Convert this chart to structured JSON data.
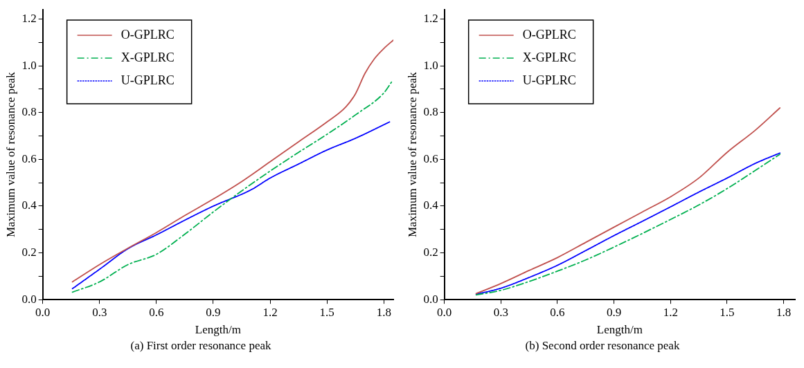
{
  "chart_data": [
    {
      "type": "line",
      "xlabel": "Length/m",
      "ylabel": "Maximum value of resonance peak",
      "annotations": [
        "(a) First order resonance peak"
      ],
      "legend": "top left",
      "grid": false,
      "marker": "none",
      "xlim": [
        0,
        1.85
      ],
      "xticks": [
        {
          "value": 0,
          "label": "0.0"
        },
        0.3,
        0.6,
        0.9,
        1.2,
        1.5,
        1.8
      ],
      "ylim": [
        0,
        1.24
      ],
      "yticks": [
        {
          "value": 0,
          "label": "0.0"
        },
        {
          "value": 0.1,
          "label": null
        },
        0.2,
        {
          "value": 0.3,
          "label": null
        },
        0.4,
        {
          "value": 0.5,
          "label": null
        },
        0.6,
        {
          "value": 0.7,
          "label": null
        },
        0.8,
        {
          "value": 0.9,
          "label": null
        },
        {
          "value": 1,
          "label": "1.0"
        },
        {
          "value": 1.1,
          "label": null
        },
        1.2
      ],
      "series": [
        {
          "name": "O-GPLRC",
          "color": "#c0504d",
          "line_style": "solid",
          "x": [
            0.157,
            0.3,
            0.45,
            0.6,
            0.75,
            0.9,
            1.05,
            1.2,
            1.35,
            1.5,
            1.6,
            1.65,
            1.7,
            1.75,
            1.8,
            1.85
          ],
          "values": [
            0.076,
            0.15,
            0.22,
            0.287,
            0.36,
            0.43,
            0.505,
            0.59,
            0.675,
            0.76,
            0.825,
            0.88,
            0.967,
            1.03,
            1.074,
            1.11
          ]
        },
        {
          "name": "X-GPLRC",
          "color": "#00b050",
          "line_style": "dashed",
          "x": [
            0.157,
            0.3,
            0.45,
            0.6,
            0.75,
            0.9,
            1.05,
            1.2,
            1.35,
            1.5,
            1.65,
            1.8,
            1.84
          ],
          "values": [
            0.032,
            0.076,
            0.15,
            0.194,
            0.28,
            0.375,
            0.465,
            0.55,
            0.63,
            0.707,
            0.79,
            0.884,
            0.93
          ]
        },
        {
          "name": "U-GPLRC",
          "color": "#0000ff",
          "line_style": "dotted",
          "x": [
            0.157,
            0.3,
            0.45,
            0.6,
            0.75,
            0.9,
            1.1,
            1.2,
            1.35,
            1.5,
            1.65,
            1.83
          ],
          "values": [
            0.047,
            0.13,
            0.218,
            0.277,
            0.34,
            0.4,
            0.47,
            0.52,
            0.58,
            0.64,
            0.69,
            0.76
          ]
        }
      ]
    },
    {
      "type": "line",
      "xlabel": "Length/m",
      "ylabel": "Maximum value of resonance peak",
      "annotations": [
        "(b) Second order resonance peak"
      ],
      "legend": "top left",
      "grid": false,
      "marker": "none",
      "xlim": [
        0,
        1.86
      ],
      "xticks": [
        {
          "value": 0,
          "label": "0.0"
        },
        0.3,
        0.6,
        0.9,
        1.2,
        1.5,
        1.8
      ],
      "ylim": [
        0,
        1.24
      ],
      "yticks": [
        {
          "value": 0,
          "label": "0.0"
        },
        {
          "value": 0.1,
          "label": null
        },
        0.2,
        {
          "value": 0.3,
          "label": null
        },
        0.4,
        {
          "value": 0.5,
          "label": null
        },
        0.6,
        {
          "value": 0.7,
          "label": null
        },
        0.8,
        {
          "value": 0.9,
          "label": null
        },
        {
          "value": 1,
          "label": "1.0"
        },
        {
          "value": 1.1,
          "label": null
        },
        1.2
      ],
      "series": [
        {
          "name": "O-GPLRC",
          "color": "#c0504d",
          "line_style": "solid",
          "x": [
            0.169,
            0.3,
            0.45,
            0.6,
            0.75,
            0.9,
            1.05,
            1.2,
            1.35,
            1.5,
            1.65,
            1.78
          ],
          "values": [
            0.026,
            0.069,
            0.125,
            0.18,
            0.245,
            0.31,
            0.375,
            0.44,
            0.52,
            0.63,
            0.725,
            0.82
          ]
        },
        {
          "name": "X-GPLRC",
          "color": "#00b050",
          "line_style": "dashed",
          "x": [
            0.169,
            0.3,
            0.45,
            0.6,
            0.75,
            0.9,
            1.05,
            1.2,
            1.35,
            1.5,
            1.65,
            1.78
          ],
          "values": [
            0.02,
            0.04,
            0.078,
            0.122,
            0.17,
            0.225,
            0.283,
            0.343,
            0.405,
            0.475,
            0.553,
            0.622
          ]
        },
        {
          "name": "U-GPLRC",
          "color": "#0000ff",
          "line_style": "dotted",
          "x": [
            0.169,
            0.3,
            0.45,
            0.6,
            0.75,
            0.9,
            1.05,
            1.2,
            1.35,
            1.5,
            1.65,
            1.78
          ],
          "values": [
            0.023,
            0.049,
            0.095,
            0.147,
            0.21,
            0.274,
            0.335,
            0.397,
            0.46,
            0.52,
            0.583,
            0.627
          ]
        }
      ]
    }
  ]
}
